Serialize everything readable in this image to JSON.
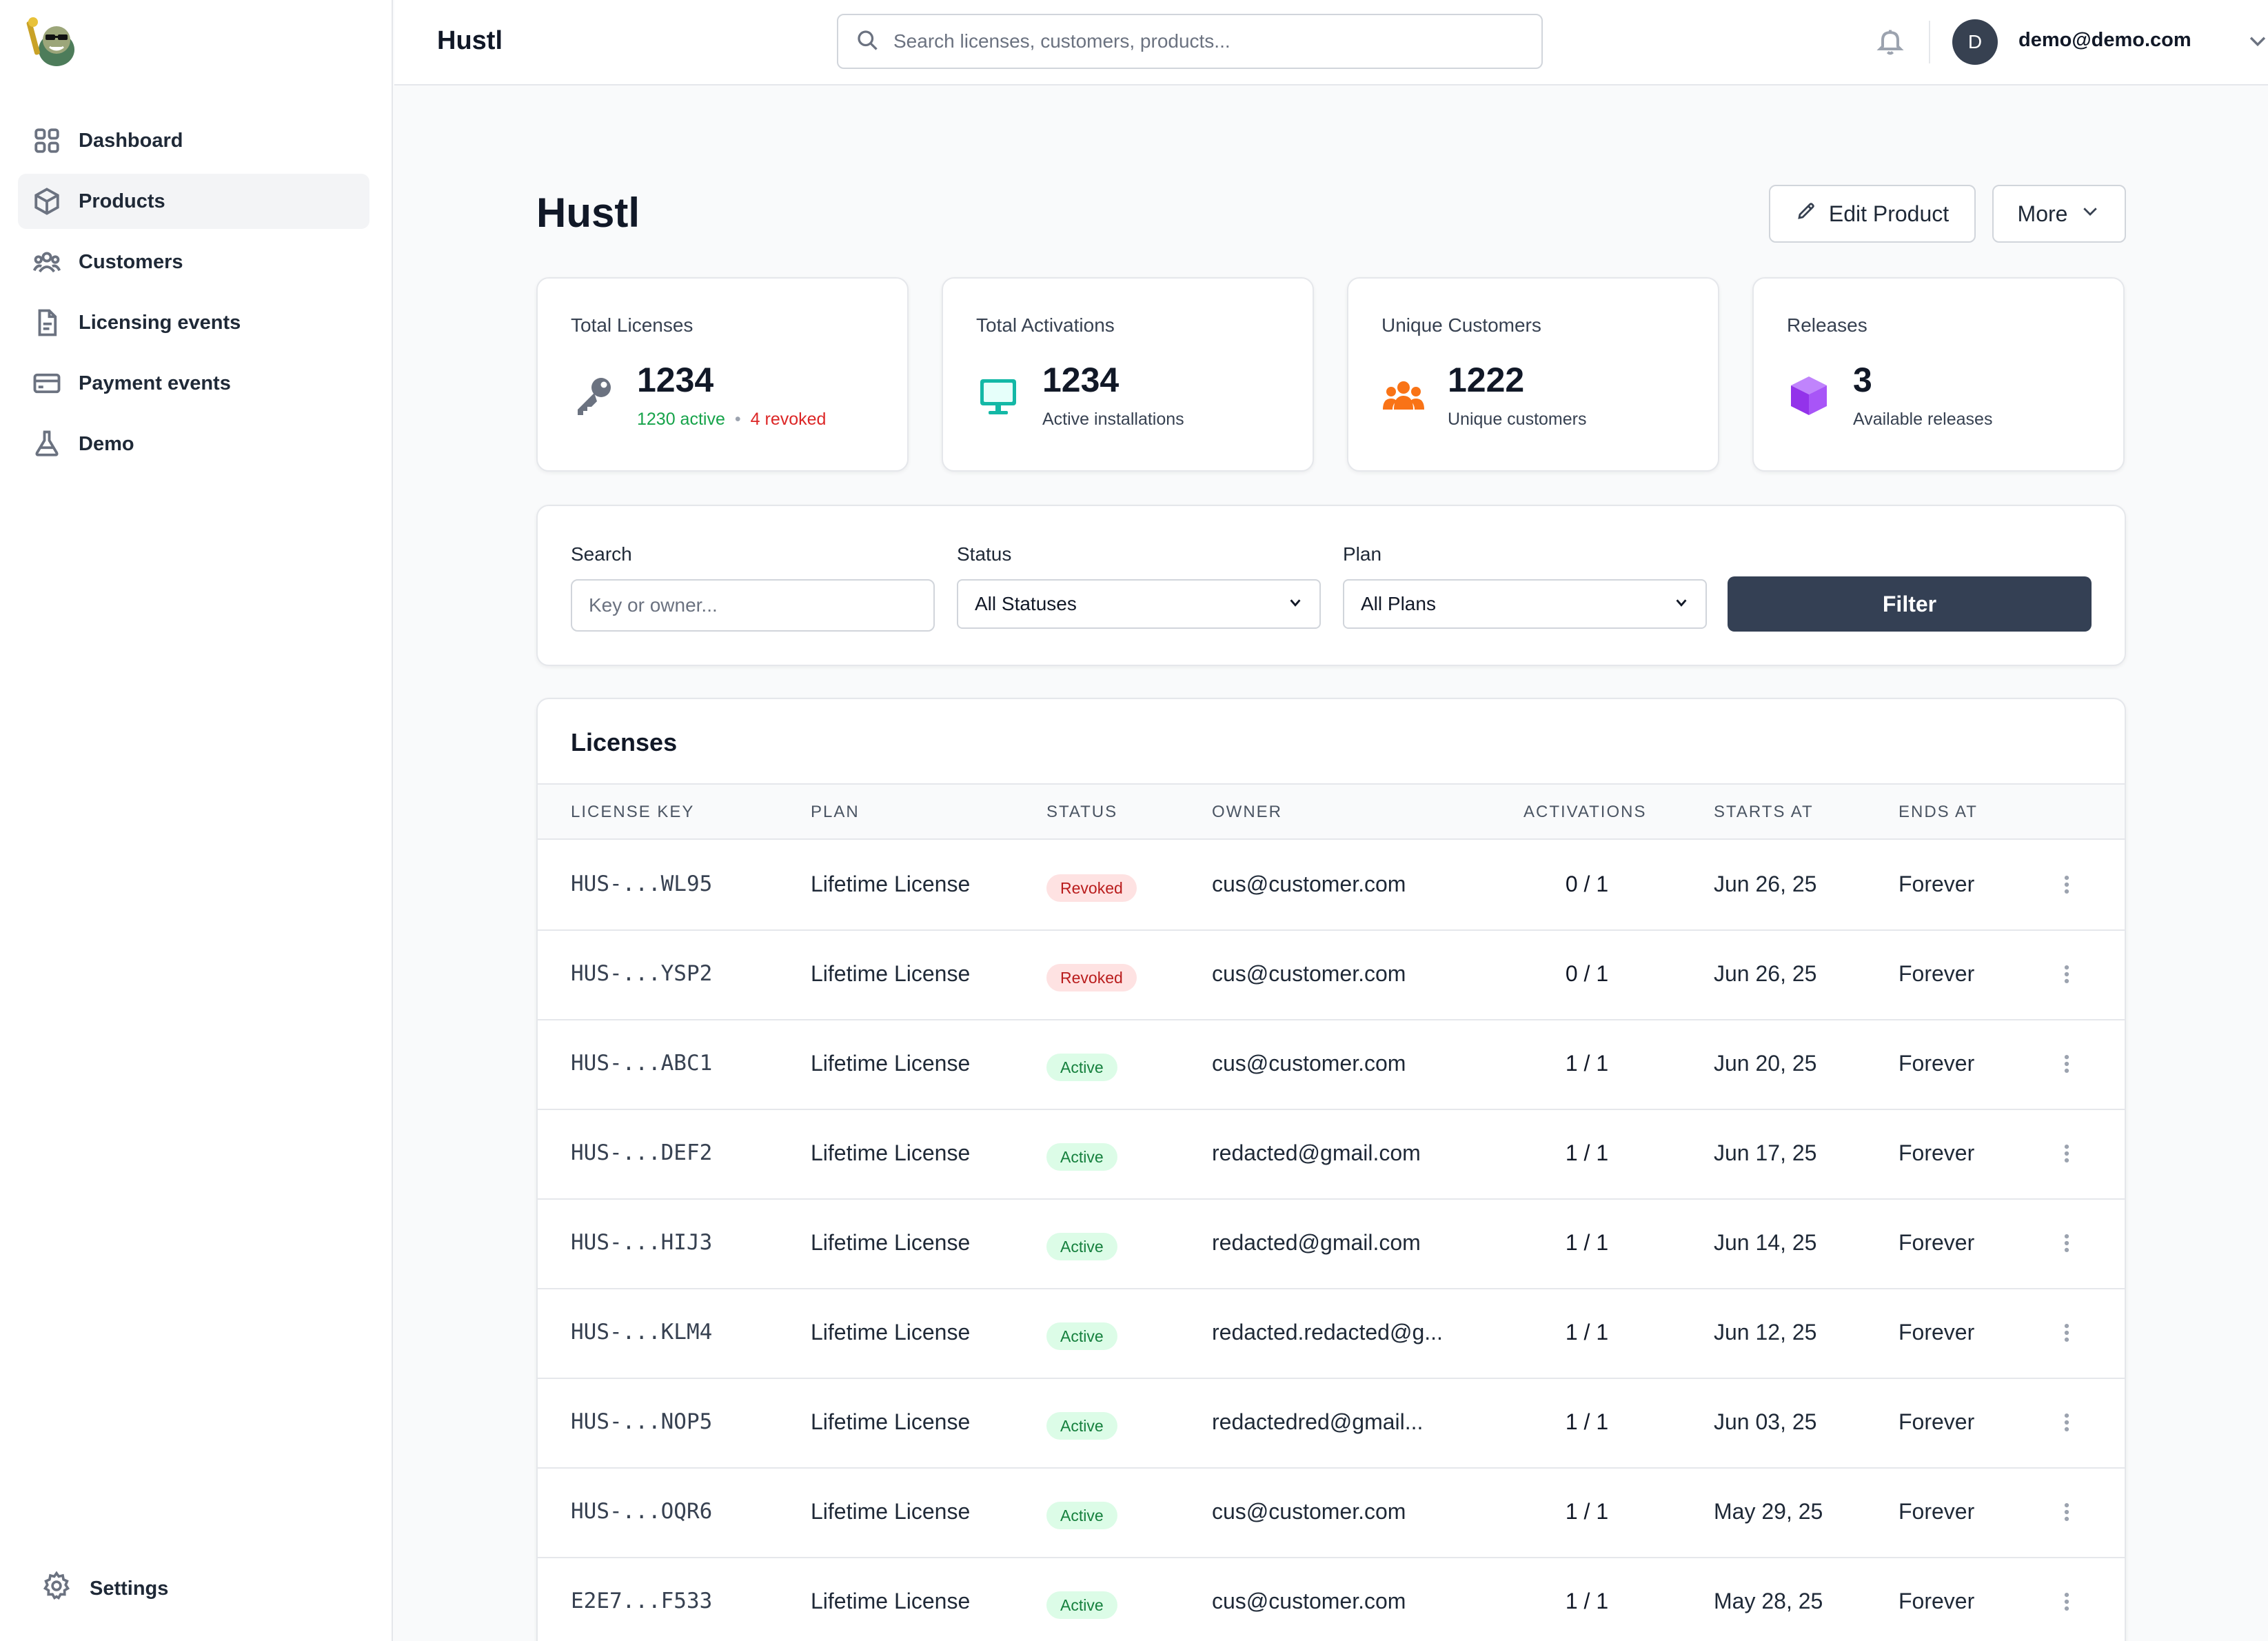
{
  "app": {
    "title": "Hustl",
    "search_placeholder": "Search licenses, customers, products...",
    "user_initial": "D",
    "user_email": "demo@demo.com"
  },
  "sidebar": {
    "items": [
      {
        "label": "Dashboard",
        "icon": "grid-icon",
        "active": false
      },
      {
        "label": "Products",
        "icon": "cube-icon",
        "active": true
      },
      {
        "label": "Customers",
        "icon": "users-icon",
        "active": false
      },
      {
        "label": "Licensing events",
        "icon": "document-icon",
        "active": false
      },
      {
        "label": "Payment events",
        "icon": "credit-card-icon",
        "active": false
      },
      {
        "label": "Demo",
        "icon": "flask-icon",
        "active": false
      }
    ],
    "settings_label": "Settings"
  },
  "page": {
    "title": "Hustl",
    "edit_button": "Edit Product",
    "more_button": "More"
  },
  "stats": [
    {
      "label": "Total Licenses",
      "value": "1234",
      "active_text": "1230 active",
      "revoked_text": "4 revoked",
      "icon": "key-icon"
    },
    {
      "label": "Total Activations",
      "value": "1234",
      "sub": "Active installations",
      "icon": "monitor-icon"
    },
    {
      "label": "Unique Customers",
      "value": "1222",
      "sub": "Unique customers",
      "icon": "users-group-icon"
    },
    {
      "label": "Releases",
      "value": "3",
      "sub": "Available releases",
      "icon": "box-icon"
    }
  ],
  "filters": {
    "search_label": "Search",
    "search_placeholder": "Key or owner...",
    "status_label": "Status",
    "status_value": "All Statuses",
    "plan_label": "Plan",
    "plan_value": "All Plans",
    "filter_button": "Filter"
  },
  "licenses": {
    "title": "Licenses",
    "columns": [
      "LICENSE KEY",
      "PLAN",
      "STATUS",
      "OWNER",
      "ACTIVATIONS",
      "STARTS AT",
      "ENDS AT"
    ],
    "rows": [
      {
        "key": "HUS-...WL95",
        "plan": "Lifetime License",
        "status": "Revoked",
        "owner": "cus@customer.com",
        "activations": "0 / 1",
        "starts": "Jun 26, 25",
        "ends": "Forever"
      },
      {
        "key": "HUS-...YSP2",
        "plan": "Lifetime License",
        "status": "Revoked",
        "owner": "cus@customer.com",
        "activations": "0 / 1",
        "starts": "Jun 26, 25",
        "ends": "Forever"
      },
      {
        "key": "HUS-...ABC1",
        "plan": "Lifetime License",
        "status": "Active",
        "owner": "cus@customer.com",
        "activations": "1 / 1",
        "starts": "Jun 20, 25",
        "ends": "Forever"
      },
      {
        "key": "HUS-...DEF2",
        "plan": "Lifetime License",
        "status": "Active",
        "owner": "redacted@gmail.com",
        "activations": "1 / 1",
        "starts": "Jun 17, 25",
        "ends": "Forever"
      },
      {
        "key": "HUS-...HIJ3",
        "plan": "Lifetime License",
        "status": "Active",
        "owner": "redacted@gmail.com",
        "activations": "1 / 1",
        "starts": "Jun 14, 25",
        "ends": "Forever"
      },
      {
        "key": "HUS-...KLM4",
        "plan": "Lifetime License",
        "status": "Active",
        "owner": "redacted.redacted@g...",
        "activations": "1 / 1",
        "starts": "Jun 12, 25",
        "ends": "Forever"
      },
      {
        "key": "HUS-...NOP5",
        "plan": "Lifetime License",
        "status": "Active",
        "owner": "redactedred@gmail...",
        "activations": "1 / 1",
        "starts": "Jun 03, 25",
        "ends": "Forever"
      },
      {
        "key": "HUS-...OQR6",
        "plan": "Lifetime License",
        "status": "Active",
        "owner": "cus@customer.com",
        "activations": "1 / 1",
        "starts": "May 29, 25",
        "ends": "Forever"
      },
      {
        "key": "E2E7...F533",
        "plan": "Lifetime License",
        "status": "Active",
        "owner": "cus@customer.com",
        "activations": "1 / 1",
        "starts": "May 28, 25",
        "ends": "Forever"
      }
    ]
  },
  "colors": {
    "primary_button": "#344054",
    "active_badge_bg": "#dcfce7",
    "active_badge_text": "#15803d",
    "revoked_badge_bg": "#fee2e2",
    "revoked_badge_text": "#b91c1c",
    "key_icon": "#6b7280",
    "monitor_icon": "#14b8a6",
    "customers_icon": "#f97316",
    "releases_icon": "#a855f7"
  }
}
